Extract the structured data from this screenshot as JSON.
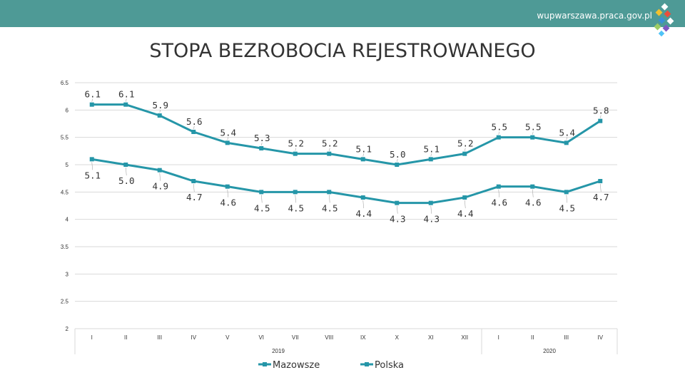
{
  "header": {
    "site_url": "wupwarszawa.praca.gov.pl"
  },
  "colors": {
    "bar": "#4e9a96",
    "series": "#2596a8",
    "grid": "#d9d9d9",
    "label_line": "#a6a6a6"
  },
  "chart_data": {
    "type": "line",
    "title": "STOPA BEZROBOCIA REJESTROWANEGO",
    "xlabel": "",
    "ylabel": "",
    "ylim": [
      2,
      6.5
    ],
    "yticks": [
      "2",
      "2.5",
      "3",
      "3.5",
      "4",
      "4.5",
      "5",
      "5.5",
      "6",
      "6.5"
    ],
    "categories": [
      "I",
      "II",
      "III",
      "IV",
      "V",
      "VI",
      "VII",
      "VIII",
      "IX",
      "X",
      "XI",
      "XII",
      "I",
      "II",
      "III",
      "IV"
    ],
    "groups": [
      {
        "label": "2019",
        "span": 12
      },
      {
        "label": "2020",
        "span": 4
      }
    ],
    "series": [
      {
        "name": "Mazowsze",
        "values": [
          5.1,
          5.0,
          4.9,
          4.7,
          4.6,
          4.5,
          4.5,
          4.5,
          4.4,
          4.3,
          4.3,
          4.4,
          4.6,
          4.6,
          4.5,
          4.7
        ],
        "labels": [
          "5.1",
          "5.0",
          "4.9",
          "4.7",
          "4.6",
          "4.5",
          "4.5",
          "4.5",
          "4.4",
          "4.3",
          "4.3",
          "4.4",
          "4.6",
          "4.6",
          "4.5",
          "4.7"
        ]
      },
      {
        "name": "Polska",
        "values": [
          6.1,
          6.1,
          5.9,
          5.6,
          5.4,
          5.3,
          5.2,
          5.2,
          5.1,
          5.0,
          5.1,
          5.2,
          5.5,
          5.5,
          5.4,
          5.8
        ],
        "labels": [
          "6.1",
          "6.1",
          "5.9",
          "5.6",
          "5.4",
          "5.3",
          "5.2",
          "5.2",
          "5.1",
          "5.0",
          "5.1",
          "5.2",
          "5.5",
          "5.5",
          "5.4",
          "5.8"
        ]
      }
    ],
    "legend": "bottom"
  }
}
